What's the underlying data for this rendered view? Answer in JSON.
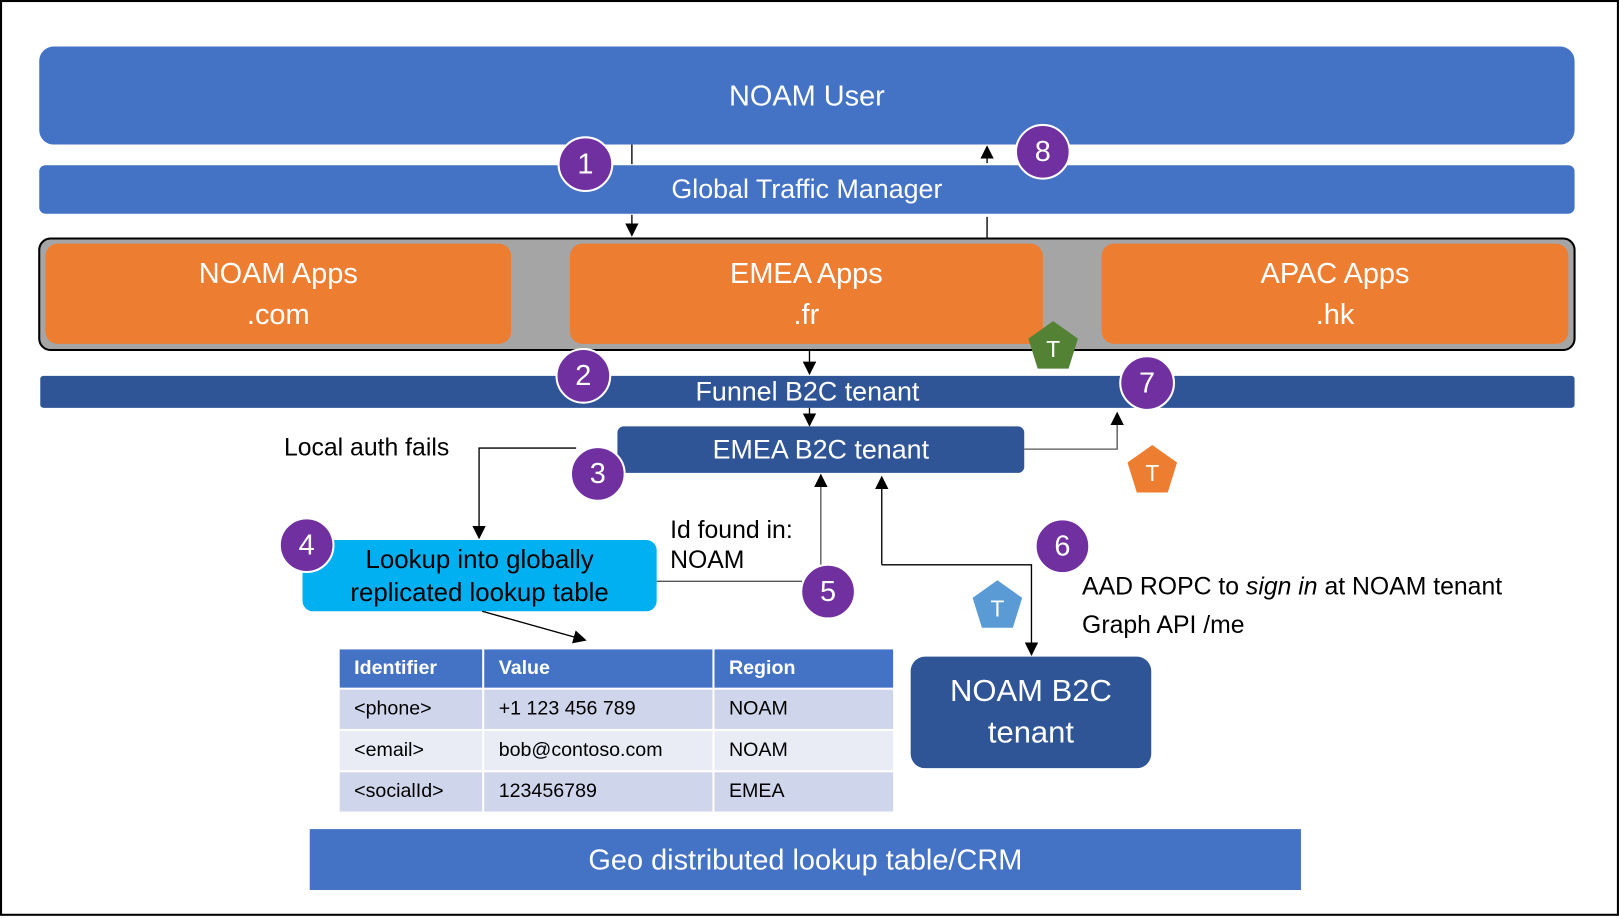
{
  "user": {
    "label": "NOAM User"
  },
  "gtm": {
    "label": "Global Traffic Manager"
  },
  "apps": [
    {
      "name": "NOAM Apps",
      "domain": ".com"
    },
    {
      "name": "EMEA Apps",
      "domain": ".fr"
    },
    {
      "name": "APAC Apps",
      "domain": ".hk"
    }
  ],
  "funnel": {
    "label": "Funnel B2C tenant"
  },
  "emea_tenant": {
    "label": "EMEA B2C tenant"
  },
  "noam_tenant": {
    "line1": "NOAM B2C",
    "line2": "tenant"
  },
  "lookup": {
    "line1": "Lookup into globally",
    "line2": "replicated lookup table"
  },
  "geo": {
    "label": "Geo distributed lookup table/CRM"
  },
  "notes": {
    "local_auth": "Local auth fails",
    "id_found_1": "Id found in:",
    "id_found_2": "NOAM",
    "ropc_pre": "AAD ROPC to ",
    "ropc_em": "sign in",
    "ropc_post": " at NOAM tenant",
    "graph": "Graph API /me"
  },
  "steps": [
    "1",
    "2",
    "3",
    "4",
    "5",
    "6",
    "7",
    "8"
  ],
  "token_label": "T",
  "token_colors": {
    "green": "#548235",
    "orange": "#ED7D31",
    "blue": "#5B9BD5"
  },
  "table": {
    "headers": [
      "Identifier",
      "Value",
      "Region"
    ],
    "rows": [
      [
        "<phone>",
        "+1 123 456 789",
        "NOAM"
      ],
      [
        "<email>",
        "bob@contoso.com",
        "NOAM"
      ],
      [
        "<socialId>",
        "123456789",
        "EMEA"
      ]
    ]
  },
  "colors": {
    "blue": "#4472C4",
    "dark_blue": "#2F5597",
    "orange": "#ED7D31",
    "cyan": "#00B0F0",
    "purple": "#7030A0",
    "gray": "#A5A5A5"
  }
}
